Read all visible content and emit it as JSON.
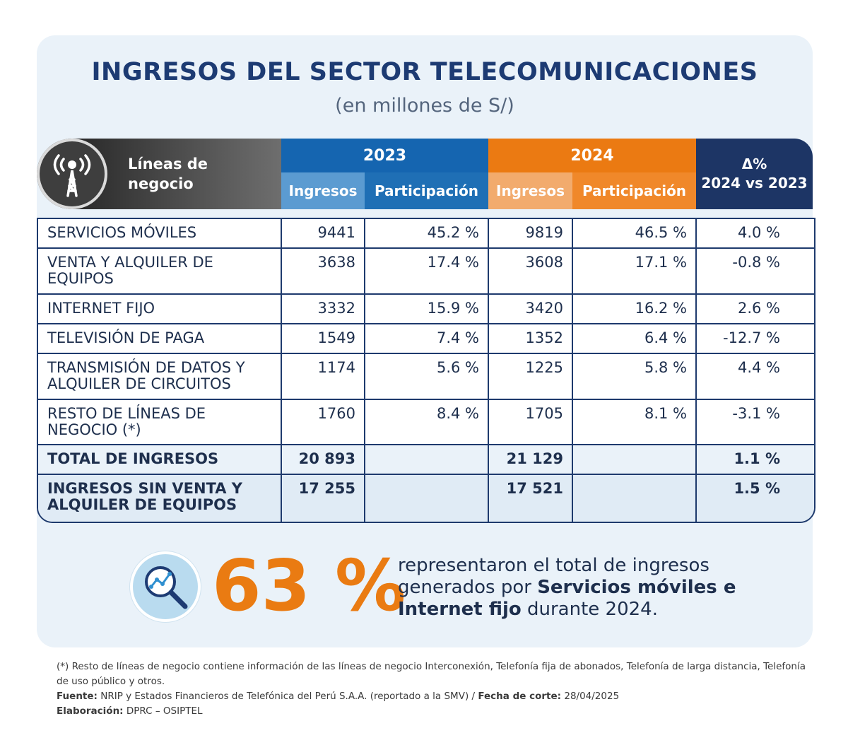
{
  "title": "INGRESOS DEL SECTOR TELECOMUNICACIONES",
  "subtitle": "(en millones de S/)",
  "header": {
    "lines_label": "Líneas de negocio",
    "year_2023": "2023",
    "year_2024": "2024",
    "col_ingresos": "Ingresos",
    "col_participacion": "Participación",
    "delta_symbol": "Δ%",
    "delta_label": "2024 vs 2023",
    "icon": "antenna-tower-icon"
  },
  "rows": [
    {
      "name": "SERVICIOS MÓVILES",
      "ing23": "9441",
      "par23": "45.2 %",
      "ing24": "9819",
      "par24": "46.5 %",
      "delta": "4.0 %"
    },
    {
      "name": "VENTA Y ALQUILER DE EQUIPOS",
      "ing23": "3638",
      "par23": "17.4 %",
      "ing24": "3608",
      "par24": "17.1 %",
      "delta": "-0.8 %"
    },
    {
      "name": "INTERNET FIJO",
      "ing23": "3332",
      "par23": "15.9 %",
      "ing24": "3420",
      "par24": "16.2 %",
      "delta": "2.6 %"
    },
    {
      "name": "TELEVISIÓN DE PAGA",
      "ing23": "1549",
      "par23": "7.4 %",
      "ing24": "1352",
      "par24": "6.4 %",
      "delta": "-12.7 %"
    },
    {
      "name": "TRANSMISIÓN DE DATOS Y ALQUILER DE CIRCUITOS",
      "ing23": "1174",
      "par23": "5.6 %",
      "ing24": "1225",
      "par24": "5.8 %",
      "delta": "4.4 %"
    },
    {
      "name": "RESTO DE LÍNEAS DE NEGOCIO (*)",
      "ing23": "1760",
      "par23": "8.4 %",
      "ing24": "1705",
      "par24": "8.1 %",
      "delta": "-3.1 %"
    }
  ],
  "total": {
    "name": "TOTAL DE INGRESOS",
    "ing23": "20 893",
    "ing24": "21 129",
    "delta": "1.1 %"
  },
  "total_sin": {
    "name": "INGRESOS SIN VENTA Y ALQUILER DE EQUIPOS",
    "ing23": "17 255",
    "ing24": "17 521",
    "delta": "1.5 %"
  },
  "highlight": {
    "icon": "magnifier-chart-icon",
    "percent": "63 %",
    "text_1": "representaron el total de ingresos generados por ",
    "text_bold_1": "Servicios móviles e Internet fijo",
    "text_2": " durante 2024."
  },
  "footer": {
    "note": "(*) Resto de líneas de negocio contiene información de las líneas de negocio Interconexión, Telefonía fija de abonados, Telefonía de larga distancia, Telefonía de uso público y otros.",
    "source_label": "Fuente:",
    "source_text": " NRIP y Estados Financieros de Telefónica del Perú S.A.A. (reportado a la SMV) / ",
    "cut_label": "Fecha de corte:",
    "cut_text": " 28/04/2025",
    "elab_label": "Elaboración:",
    "elab_text": " DPRC – OSIPTEL"
  },
  "colors": {
    "navy": "#1d3b73",
    "blue_2023": "#1565b0",
    "light_blue_2023": "#5b9bd1",
    "orange_2024": "#eb7a12",
    "light_orange_2024": "#f2ab6d",
    "delta_bg": "#1d3565",
    "card_bg": "#eaf2f9"
  }
}
